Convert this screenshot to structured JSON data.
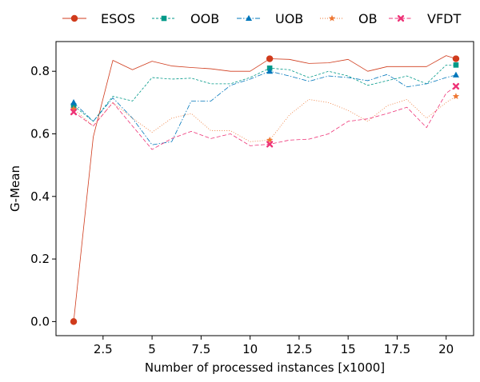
{
  "chart_data": {
    "type": "line",
    "xlabel": "Number of processed instances [x1000]",
    "ylabel": "G-Mean",
    "xlim": [
      0.1,
      21.4
    ],
    "ylim": [
      -0.045,
      0.895
    ],
    "x_ticks": [
      2.5,
      5,
      7.5,
      10,
      12.5,
      15,
      17.5,
      20
    ],
    "x_tick_labels": [
      "2.5",
      "5",
      "7.5",
      "10",
      "12.5",
      "15",
      "17.5",
      "20"
    ],
    "y_ticks": [
      0.0,
      0.2,
      0.4,
      0.6,
      0.8
    ],
    "y_tick_labels": [
      "0.0",
      "0.2",
      "0.4",
      "0.6",
      "0.8"
    ],
    "grid": false,
    "legend_position": "top, above plot",
    "x": [
      1,
      2,
      3,
      4,
      5,
      6,
      7,
      8,
      9,
      10,
      11,
      12,
      13,
      14,
      15,
      16,
      17,
      18,
      19,
      20,
      20.5
    ],
    "marker_x": [
      1,
      11,
      20.5
    ],
    "series": [
      {
        "name": "ESOS",
        "color": "#d03b1c",
        "marker": "circle",
        "dash": "",
        "values": [
          0.0,
          0.59,
          0.835,
          0.805,
          0.832,
          0.817,
          0.812,
          0.808,
          0.8,
          0.8,
          0.84,
          0.838,
          0.825,
          0.827,
          0.838,
          0.8,
          0.815,
          0.815,
          0.815,
          0.85,
          0.84
        ]
      },
      {
        "name": "OOB",
        "color": "#009988",
        "marker": "square",
        "dash": "3,2",
        "values": [
          0.69,
          0.64,
          0.72,
          0.705,
          0.78,
          0.775,
          0.778,
          0.76,
          0.76,
          0.78,
          0.81,
          0.805,
          0.78,
          0.8,
          0.785,
          0.755,
          0.77,
          0.785,
          0.76,
          0.82,
          0.82
        ]
      },
      {
        "name": "UOB",
        "color": "#0077bb",
        "marker": "triangle",
        "dash": "6,2,1.5,2",
        "values": [
          0.7,
          0.64,
          0.715,
          0.65,
          0.565,
          0.575,
          0.705,
          0.705,
          0.755,
          0.775,
          0.8,
          0.785,
          0.768,
          0.785,
          0.78,
          0.77,
          0.79,
          0.75,
          0.76,
          0.78,
          0.788
        ]
      },
      {
        "name": "OB",
        "color": "#ee7733",
        "marker": "star",
        "dash": "1,2",
        "values": [
          0.68,
          0.625,
          0.7,
          0.65,
          0.605,
          0.65,
          0.665,
          0.61,
          0.61,
          0.575,
          0.58,
          0.66,
          0.71,
          0.7,
          0.675,
          0.64,
          0.69,
          0.71,
          0.65,
          0.7,
          0.72
        ]
      },
      {
        "name": "VFDT",
        "color": "#ee3377",
        "marker": "x",
        "dash": "5,2.5",
        "values": [
          0.67,
          0.625,
          0.7,
          0.625,
          0.55,
          0.585,
          0.608,
          0.585,
          0.6,
          0.562,
          0.567,
          0.58,
          0.583,
          0.6,
          0.64,
          0.648,
          0.665,
          0.685,
          0.62,
          0.73,
          0.752
        ]
      }
    ]
  }
}
